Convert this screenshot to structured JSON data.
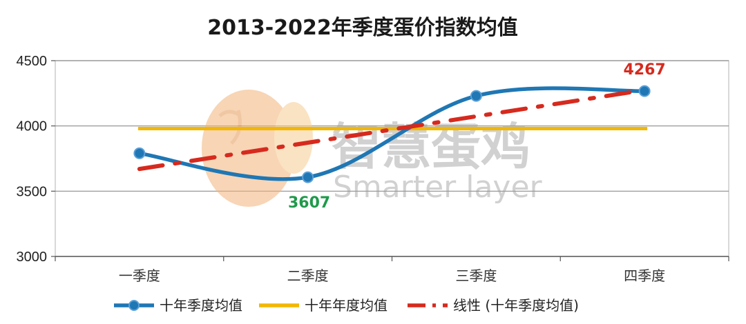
{
  "chart_data": {
    "type": "line",
    "title": "2013-2022年季度蛋价指数均值",
    "categories": [
      "一季度",
      "二季度",
      "三季度",
      "四季度"
    ],
    "ylim": [
      3000,
      4500
    ],
    "yticks": [
      "3000",
      "3500",
      "4000",
      "4500"
    ],
    "grid": true,
    "legend_position": "bottom",
    "series": [
      {
        "name": "十年季度均值",
        "values": [
          3790,
          3607,
          4230,
          4267
        ],
        "color": "#1f77b4",
        "style": "smooth-line-markers"
      },
      {
        "name": "十年年度均值",
        "values": [
          3980,
          3980,
          3980,
          3980
        ],
        "color": "#f2b705",
        "style": "line"
      },
      {
        "name": "线性 (十年季度均值)",
        "values": [
          3670,
          3870,
          4070,
          4275
        ],
        "color": "#d62a1e",
        "style": "dash-dot"
      }
    ],
    "annotations": [
      {
        "text": "3607",
        "color": "#1f9a4b"
      },
      {
        "text": "4267",
        "color": "#d62a1e"
      }
    ]
  },
  "watermark": {
    "text_cn": "智慧蛋鸡",
    "text_en": "Smarter layer"
  }
}
